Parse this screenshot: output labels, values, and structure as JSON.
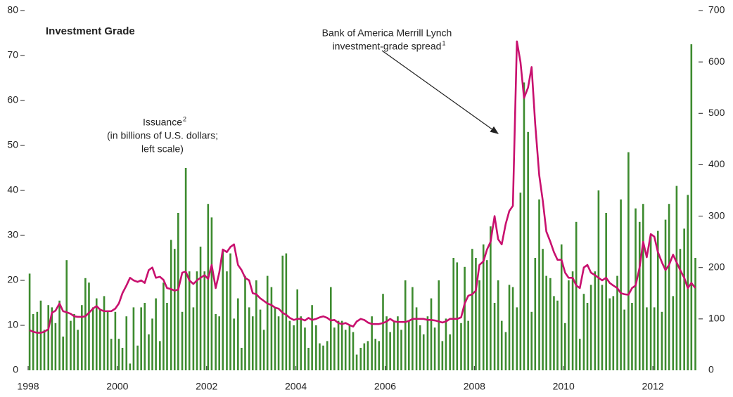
{
  "chart_data": {
    "type": "bar",
    "title": "Investment Grade",
    "annotations": [
      {
        "lines": [
          "Bank of America Merrill Lynch",
          "investment-grade spread"
        ],
        "footnote": "1"
      },
      {
        "lines": [
          "Issuance",
          "(in billions of U.S. dollars;",
          "left scale)"
        ],
        "footnote": "2"
      }
    ],
    "xlim": [
      1998,
      2013
    ],
    "xticks": [
      1998,
      2000,
      2002,
      2004,
      2006,
      2008,
      2010,
      2012
    ],
    "ylim": [
      0,
      80
    ],
    "yticks": [
      0,
      10,
      20,
      30,
      40,
      50,
      60,
      70,
      80
    ],
    "y2lim": [
      0,
      700
    ],
    "y2ticks": [
      0,
      100,
      200,
      300,
      400,
      500,
      600,
      700
    ],
    "x": [
      1998,
      1998.08,
      1998.17,
      1998.25,
      1998.33,
      1998.42,
      1998.5,
      1998.58,
      1998.67,
      1998.75,
      1998.83,
      1998.92,
      1999,
      1999.08,
      1999.17,
      1999.25,
      1999.33,
      1999.42,
      1999.5,
      1999.58,
      1999.67,
      1999.75,
      1999.83,
      1999.92,
      2000,
      2000.08,
      2000.17,
      2000.25,
      2000.33,
      2000.42,
      2000.5,
      2000.58,
      2000.67,
      2000.75,
      2000.83,
      2000.92,
      2001,
      2001.08,
      2001.17,
      2001.25,
      2001.33,
      2001.42,
      2001.5,
      2001.58,
      2001.67,
      2001.75,
      2001.83,
      2001.92,
      2002,
      2002.08,
      2002.17,
      2002.25,
      2002.33,
      2002.42,
      2002.5,
      2002.58,
      2002.67,
      2002.75,
      2002.83,
      2002.92,
      2003,
      2003.08,
      2003.17,
      2003.25,
      2003.33,
      2003.42,
      2003.5,
      2003.58,
      2003.67,
      2003.75,
      2003.83,
      2003.92,
      2004,
      2004.08,
      2004.17,
      2004.25,
      2004.33,
      2004.42,
      2004.5,
      2004.58,
      2004.67,
      2004.75,
      2004.83,
      2004.92,
      2005,
      2005.08,
      2005.17,
      2005.25,
      2005.33,
      2005.42,
      2005.5,
      2005.58,
      2005.67,
      2005.75,
      2005.83,
      2005.92,
      2006,
      2006.08,
      2006.17,
      2006.25,
      2006.33,
      2006.42,
      2006.5,
      2006.58,
      2006.67,
      2006.75,
      2006.83,
      2006.92,
      2007,
      2007.08,
      2007.17,
      2007.25,
      2007.33,
      2007.42,
      2007.5,
      2007.58,
      2007.67,
      2007.75,
      2007.83,
      2007.92,
      2008,
      2008.08,
      2008.17,
      2008.25,
      2008.33,
      2008.42,
      2008.5,
      2008.58,
      2008.67,
      2008.75,
      2008.83,
      2008.92,
      2009,
      2009.08,
      2009.17,
      2009.25,
      2009.33,
      2009.42,
      2009.5,
      2009.58,
      2009.67,
      2009.75,
      2009.83,
      2009.92,
      2010,
      2010.08,
      2010.17,
      2010.25,
      2010.33,
      2010.42,
      2010.5,
      2010.58,
      2010.67,
      2010.75,
      2010.83,
      2010.92,
      2011,
      2011.08,
      2011.17,
      2011.25,
      2011.33,
      2011.42,
      2011.5,
      2011.58,
      2011.67,
      2011.75,
      2011.83,
      2011.92,
      2012,
      2012.08,
      2012.17,
      2012.25,
      2012.33,
      2012.42,
      2012.5,
      2012.58,
      2012.67,
      2012.75,
      2012.83,
      2012.92
    ],
    "series": [
      {
        "type": "bar",
        "color": "#3d8b2f",
        "values": [
          21.5,
          12.5,
          13,
          15.5,
          9,
          14.5,
          14,
          10.5,
          15.5,
          7.5,
          24.5,
          11,
          12.5,
          9,
          14.5,
          20.5,
          19.5,
          14,
          16,
          13.5,
          16.5,
          13,
          7,
          13,
          7,
          5,
          12,
          1.5,
          14,
          5.5,
          14,
          15,
          8,
          11.5,
          16,
          6.5,
          19.5,
          15,
          29,
          27,
          35,
          13,
          45,
          22,
          14,
          22,
          27.5,
          22,
          37,
          34,
          12.5,
          12,
          26.5,
          22,
          26,
          11.5,
          16,
          5,
          21,
          14,
          12,
          20,
          13.5,
          9,
          21,
          18.5,
          14,
          12,
          25.5,
          26,
          11,
          10,
          18,
          12,
          9.5,
          5,
          14.5,
          10,
          6,
          5.5,
          6.5,
          18.5,
          9.5,
          11,
          11,
          9,
          10,
          8.5,
          3.5,
          5,
          6,
          6.5,
          12,
          7,
          6.5,
          17,
          12,
          8.5,
          11,
          12,
          9,
          20,
          11,
          18.5,
          14,
          10,
          8,
          12,
          16,
          9.5,
          20,
          6.5,
          11.5,
          8,
          25,
          24,
          10.5,
          23,
          11,
          27,
          25,
          20,
          28,
          24.5,
          32,
          15,
          20,
          11,
          8.5,
          19,
          18.5,
          14,
          39.5,
          64,
          53,
          13,
          25,
          38,
          27,
          21,
          20.5,
          16.5,
          15.5,
          28,
          10.5,
          20,
          22,
          33,
          7,
          17,
          15,
          19,
          22,
          40,
          19,
          35,
          16,
          16.5,
          21,
          38,
          13.5,
          48.5,
          15,
          36,
          33,
          37,
          14,
          30,
          14,
          31,
          13,
          33.5,
          37,
          16.5,
          41,
          27,
          31.5,
          39,
          72.5,
          25
        ]
      },
      {
        "type": "line",
        "axis": "y2",
        "color": "#c8106e",
        "values": [
          78,
          75,
          73,
          73,
          75,
          80,
          112,
          116,
          130,
          115,
          113,
          110,
          105,
          104,
          104,
          105,
          112,
          120,
          125,
          118,
          115,
          115,
          115,
          120,
          130,
          150,
          165,
          180,
          175,
          172,
          175,
          170,
          195,
          200,
          180,
          182,
          176,
          160,
          158,
          155,
          157,
          190,
          192,
          175,
          168,
          175,
          180,
          185,
          178,
          205,
          160,
          190,
          235,
          230,
          240,
          245,
          205,
          195,
          180,
          175,
          150,
          148,
          140,
          135,
          130,
          127,
          122,
          120,
          112,
          108,
          102,
          98,
          100,
          100,
          97,
          102,
          98,
          100,
          103,
          105,
          102,
          97,
          98,
          92,
          90,
          92,
          88,
          85,
          95,
          100,
          98,
          93,
          90,
          90,
          90,
          92,
          95,
          100,
          95,
          94,
          94,
          94,
          96,
          100,
          100,
          100,
          100,
          98,
          98,
          97,
          95,
          93,
          95,
          100,
          100,
          100,
          103,
          130,
          145,
          148,
          155,
          205,
          212,
          235,
          250,
          300,
          255,
          245,
          285,
          310,
          320,
          640,
          600,
          530,
          550,
          590,
          480,
          380,
          330,
          270,
          250,
          230,
          215,
          215,
          190,
          180,
          180,
          165,
          160,
          200,
          205,
          190,
          185,
          180,
          175,
          180,
          170,
          165,
          160,
          150,
          148,
          147,
          160,
          165,
          200,
          250,
          220,
          265,
          260,
          230,
          210,
          195,
          205,
          225,
          210,
          195,
          180,
          160,
          170,
          160
        ]
      }
    ]
  }
}
